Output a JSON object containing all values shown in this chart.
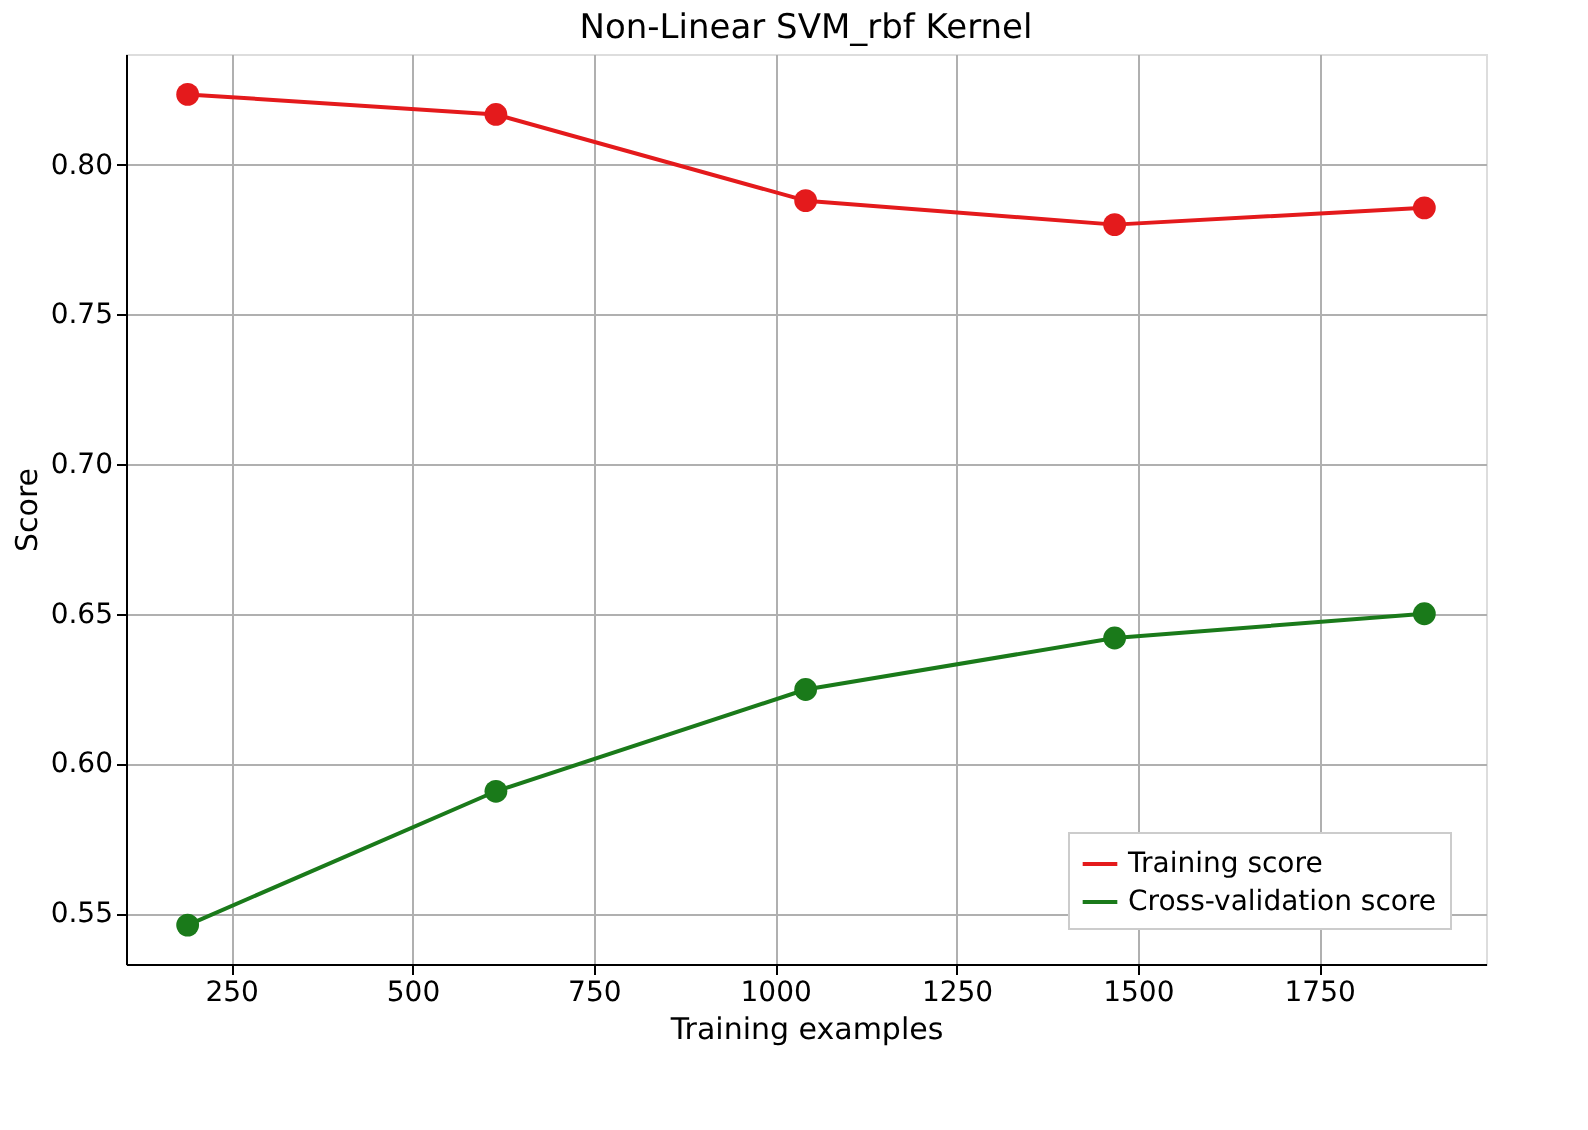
{
  "chart_data": {
    "type": "line",
    "title": "Non-Linear SVM_rbf Kernel",
    "xlabel": "Training examples",
    "ylabel": "Score",
    "x": [
      190,
      615,
      1042,
      1468,
      1895
    ],
    "series": [
      {
        "name": "Training score",
        "color": "#e41a1c",
        "values": [
          0.8235,
          0.8168,
          0.788,
          0.78,
          0.7856
        ]
      },
      {
        "name": "Cross-validation score",
        "color": "#1a7a1a",
        "values": [
          0.546,
          0.5907,
          0.6247,
          0.6419,
          0.65
        ]
      }
    ],
    "xlim": [
      105,
      1980
    ],
    "xticks": [
      250,
      500,
      750,
      1000,
      1250,
      1500,
      1750
    ],
    "ylim": [
      0.533,
      0.837
    ],
    "yticks": [
      0.55,
      {
        "value": 0.6,
        "label": "0.60"
      },
      0.65,
      {
        "value": 0.7,
        "label": "0.70"
      },
      0.75,
      {
        "value": 0.8,
        "label": "0.80"
      }
    ],
    "grid": true,
    "legend": "bottom right",
    "marker": "circle",
    "line_style": "solid"
  }
}
